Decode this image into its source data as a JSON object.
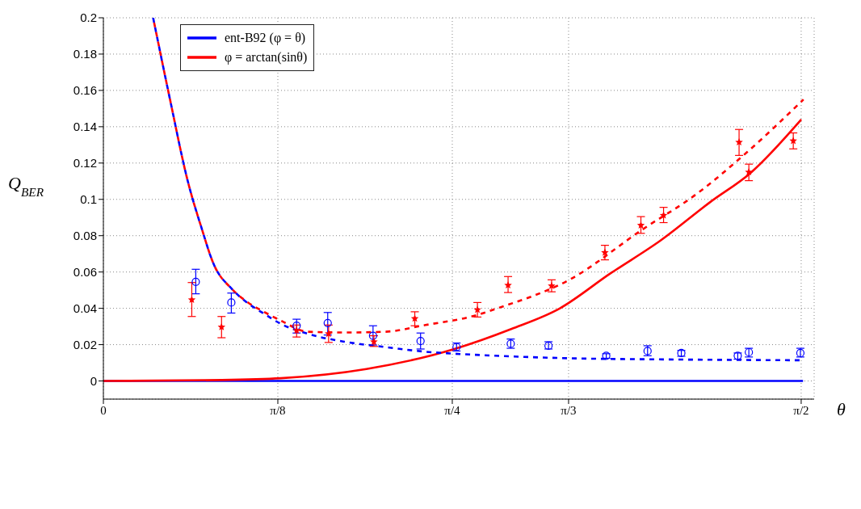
{
  "chart_data": {
    "type": "line",
    "xlabel": "θ",
    "ylabel": "Q$_{BER}$",
    "xlim": [
      0,
      1.6
    ],
    "ylim": [
      -0.01,
      0.2
    ],
    "xticks": [
      {
        "value": 0,
        "label": "0"
      },
      {
        "value": 0.3927,
        "label": "π/8"
      },
      {
        "value": 0.7854,
        "label": "π/4"
      },
      {
        "value": 1.0472,
        "label": "π/3"
      },
      {
        "value": 1.5708,
        "label": "π/2"
      }
    ],
    "yticks": [
      0,
      0.02,
      0.04,
      0.06,
      0.08,
      0.1,
      0.12,
      0.14,
      0.16,
      0.18,
      0.2
    ],
    "grid": true,
    "legend": "top left",
    "series": [
      {
        "name": "ent-B92 (φ = θ)",
        "color": "#0000ff",
        "line_style": "solid",
        "x": [
          0,
          1.575
        ],
        "values": [
          0,
          0
        ]
      },
      {
        "name": "φ = arctan(sinθ)",
        "color": "#ff0000",
        "line_style": "solid",
        "x": [
          0,
          0.266,
          0.399,
          0.592,
          0.79,
          0.918,
          1.027,
          1.14,
          1.254,
          1.366,
          1.457,
          1.571
        ],
        "values": [
          0,
          0.0005,
          0.0015,
          0.0066,
          0.0176,
          0.0286,
          0.0399,
          0.059,
          0.0773,
          0.0985,
          0.1146,
          0.144
        ]
      },
      {
        "color": "#0000ff",
        "line_style": "dashed",
        "x": [
          0.112,
          0.15,
          0.19,
          0.22,
          0.248,
          0.29,
          0.321,
          0.362,
          0.399,
          0.46,
          0.543,
          0.634,
          0.725,
          0.792,
          0.882,
          1.05,
          1.3,
          1.575
        ],
        "values": [
          0.2,
          0.155,
          0.11,
          0.085,
          0.0645,
          0.0505,
          0.0436,
          0.037,
          0.0315,
          0.026,
          0.0216,
          0.0187,
          0.0161,
          0.015,
          0.0139,
          0.0125,
          0.0118,
          0.0114
        ]
      },
      {
        "color": "#ff0000",
        "line_style": "dashed",
        "x": [
          0.112,
          0.15,
          0.19,
          0.22,
          0.248,
          0.29,
          0.321,
          0.362,
          0.399,
          0.46,
          0.543,
          0.634,
          0.725,
          0.841,
          0.882,
          1.051,
          1.214,
          1.335,
          1.449,
          1.576
        ],
        "values": [
          0.2,
          0.155,
          0.11,
          0.085,
          0.0645,
          0.0505,
          0.044,
          0.038,
          0.0333,
          0.0271,
          0.0267,
          0.0271,
          0.0308,
          0.0363,
          0.0396,
          0.056,
          0.0835,
          0.1029,
          0.126,
          0.155
        ]
      },
      {
        "type": "scatter",
        "color": "#0000ff",
        "marker": "circle",
        "x": [
          0.208,
          0.288,
          0.435,
          0.505,
          0.607,
          0.714,
          0.795,
          0.917,
          1.002,
          1.132,
          1.225,
          1.301,
          1.428,
          1.453,
          1.569
        ],
        "values": [
          0.0546,
          0.0432,
          0.0304,
          0.0319,
          0.0249,
          0.022,
          0.0187,
          0.0205,
          0.0194,
          0.0139,
          0.0165,
          0.0154,
          0.0139,
          0.0158,
          0.0154
        ],
        "errors": [
          [
            0.048,
            0.0615
          ],
          [
            0.0374,
            0.0484
          ],
          [
            0.0264,
            0.034
          ],
          [
            0.0253,
            0.0377
          ],
          [
            0.0198,
            0.0304
          ],
          [
            0.0176,
            0.0264
          ],
          [
            0.0165,
            0.0209
          ],
          [
            0.018,
            0.0231
          ],
          [
            0.0176,
            0.0216
          ],
          [
            0.0125,
            0.015
          ],
          [
            0.0139,
            0.0194
          ],
          [
            0.0136,
            0.0168
          ],
          [
            0.012,
            0.0154
          ],
          [
            0.0132,
            0.018
          ],
          [
            0.0132,
            0.018
          ]
        ]
      },
      {
        "type": "scatter",
        "color": "#ff0000",
        "marker": "star",
        "x": [
          0.199,
          0.266,
          0.435,
          0.507,
          0.609,
          0.701,
          0.842,
          0.911,
          1.009,
          1.129,
          1.21,
          1.261,
          1.431,
          1.453,
          1.553
        ],
        "values": [
          0.0447,
          0.0297,
          0.0278,
          0.026,
          0.0216,
          0.0344,
          0.0392,
          0.0527,
          0.0524,
          0.0707,
          0.0857,
          0.0912,
          0.1315,
          0.115,
          0.1322
        ],
        "errors": [
          [
            0.0355,
            0.0542
          ],
          [
            0.0238,
            0.0355
          ],
          [
            0.0242,
            0.0308
          ],
          [
            0.0212,
            0.0308
          ],
          [
            0.019,
            0.0249
          ],
          [
            0.0304,
            0.0381
          ],
          [
            0.0352,
            0.0432
          ],
          [
            0.0487,
            0.0575
          ],
          [
            0.0491,
            0.0557
          ],
          [
            0.0667,
            0.0747
          ],
          [
            0.0813,
            0.0905
          ],
          [
            0.0872,
            0.0956
          ],
          [
            0.1242,
            0.1385
          ],
          [
            0.1103,
            0.1194
          ],
          [
            0.1278,
            0.1366
          ]
        ]
      }
    ]
  }
}
